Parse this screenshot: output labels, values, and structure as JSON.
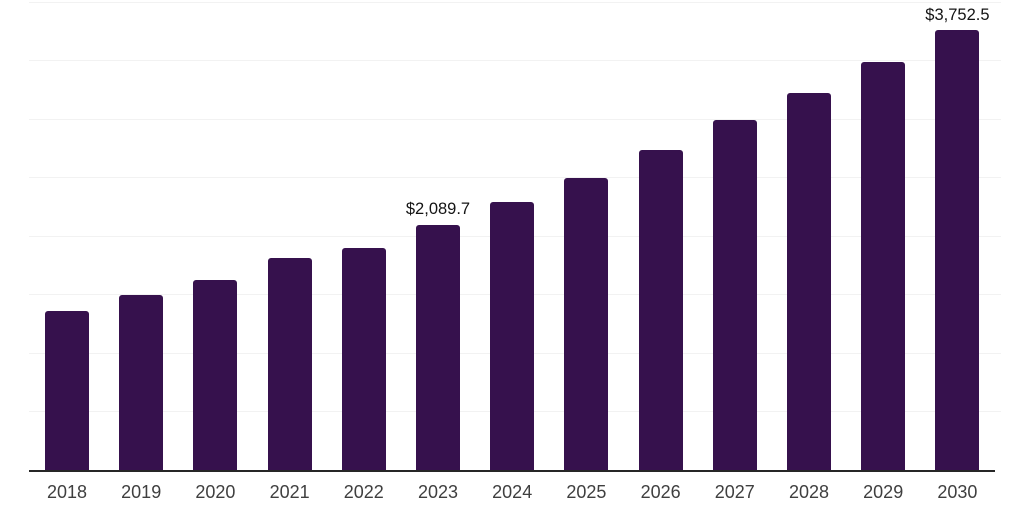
{
  "chart_data": {
    "type": "bar",
    "title": "",
    "xlabel": "",
    "ylabel": "",
    "categories": [
      "2018",
      "2019",
      "2020",
      "2021",
      "2022",
      "2023",
      "2024",
      "2025",
      "2026",
      "2027",
      "2028",
      "2029",
      "2030"
    ],
    "values": [
      1360,
      1490,
      1620,
      1810,
      1895,
      2089.7,
      2285,
      2497,
      2730,
      2985,
      3215,
      3480,
      3752.5
    ],
    "data_labels": {
      "2023": "$2,089.7",
      "2030": "$3,752.5"
    },
    "ylim": [
      0,
      4000
    ],
    "gridline_step": 500,
    "grid": "horizontal-faint",
    "legend": "none",
    "y_axis_tick_labels": "hidden",
    "colors": {
      "bar": "#36114d",
      "axis_line": "#262626",
      "gridline": "#f2f2f2",
      "tick_label": "#3f3f3f",
      "value_label": "#141414",
      "background": "#ffffff"
    }
  }
}
